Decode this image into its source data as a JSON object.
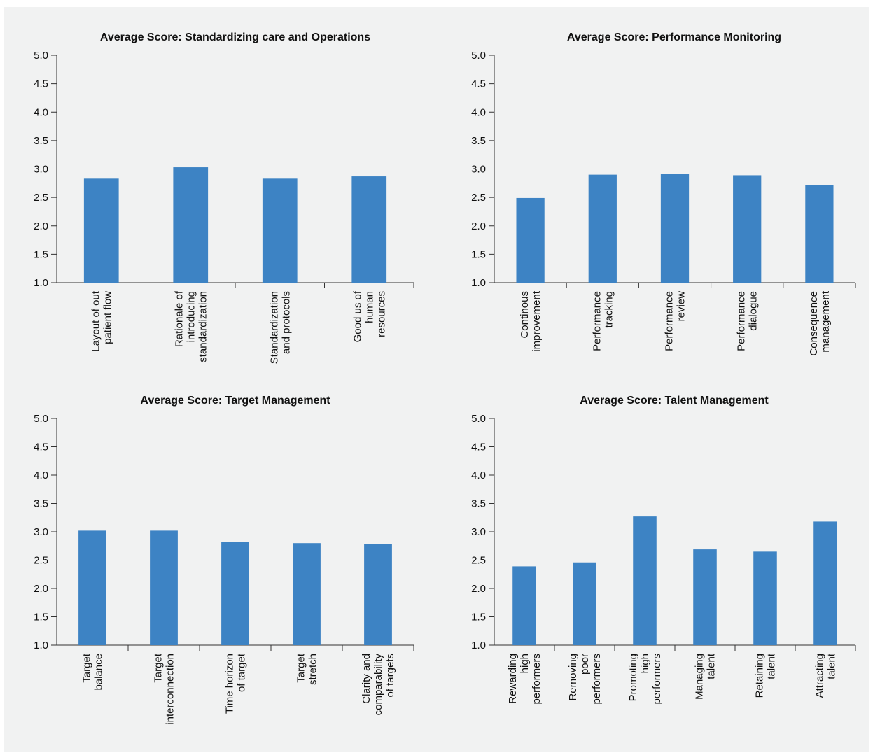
{
  "colors": {
    "bar": "#3d83c4",
    "axis": "#333333",
    "background": "#f1f2f2"
  },
  "chart_data": [
    {
      "type": "bar",
      "title": "Average Score: Standardizing care and Operations",
      "categories": [
        [
          "Layout of out",
          "patient flow"
        ],
        [
          "Rationale of",
          "introducing",
          "standardization"
        ],
        [
          "Standardization",
          "and protocols"
        ],
        [
          "Good us of",
          "human",
          "resources"
        ]
      ],
      "values": [
        2.83,
        3.03,
        2.83,
        2.87
      ],
      "ylim": [
        1.0,
        5.0
      ],
      "yticks": [
        "1.0",
        "1.5",
        "2.0",
        "2.5",
        "3.0",
        "3.5",
        "4.0",
        "4.5",
        "5.0"
      ],
      "xlabel": "",
      "ylabel": ""
    },
    {
      "type": "bar",
      "title": "Average Score: Performance Monitoring",
      "categories": [
        [
          "Continous",
          "improvement"
        ],
        [
          "Performance",
          "tracking"
        ],
        [
          "Performance",
          "review"
        ],
        [
          "Performance",
          "dialogue"
        ],
        [
          "Consequence",
          "management"
        ]
      ],
      "values": [
        2.49,
        2.9,
        2.92,
        2.89,
        2.72
      ],
      "ylim": [
        1.0,
        5.0
      ],
      "yticks": [
        "1.0",
        "1.5",
        "2.0",
        "2.5",
        "3.0",
        "3.5",
        "4.0",
        "4.5",
        "5.0"
      ],
      "xlabel": "",
      "ylabel": ""
    },
    {
      "type": "bar",
      "title": "Average Score: Target Management",
      "categories": [
        [
          "Target",
          "balance"
        ],
        [
          "Target",
          "interconnection"
        ],
        [
          "Time horizon",
          "of target"
        ],
        [
          "Target",
          "stretch"
        ],
        [
          "Clarity and",
          "comparability",
          "of targets"
        ]
      ],
      "values": [
        3.02,
        3.02,
        2.82,
        2.8,
        2.79
      ],
      "ylim": [
        1.0,
        5.0
      ],
      "yticks": [
        "1.0",
        "1.5",
        "2.0",
        "2.5",
        "3.0",
        "3.5",
        "4.0",
        "4.5",
        "5.0"
      ],
      "xlabel": "",
      "ylabel": ""
    },
    {
      "type": "bar",
      "title": "Average Score: Talent Management",
      "categories": [
        [
          "Rewarding",
          "high",
          "performers"
        ],
        [
          "Removing",
          "poor",
          "performers"
        ],
        [
          "Promoting",
          "high",
          "performers"
        ],
        [
          "Managing",
          "talent"
        ],
        [
          "Retaining",
          "talent"
        ],
        [
          "Attracting",
          "talent"
        ]
      ],
      "values": [
        2.39,
        2.46,
        3.27,
        2.69,
        2.65,
        3.18
      ],
      "ylim": [
        1.0,
        5.0
      ],
      "yticks": [
        "1.0",
        "1.5",
        "2.0",
        "2.5",
        "3.0",
        "3.5",
        "4.0",
        "4.5",
        "5.0"
      ],
      "xlabel": "",
      "ylabel": ""
    }
  ]
}
